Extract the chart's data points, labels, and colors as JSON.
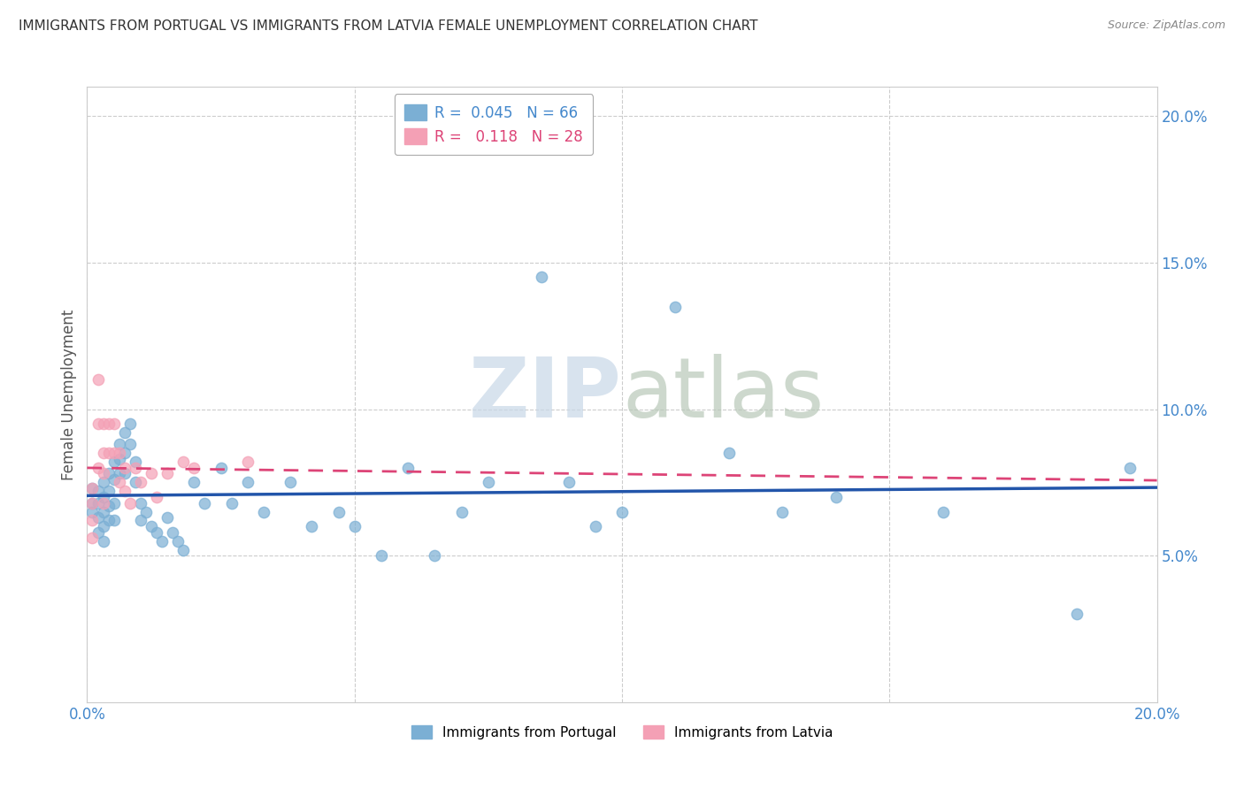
{
  "title": "IMMIGRANTS FROM PORTUGAL VS IMMIGRANTS FROM LATVIA FEMALE UNEMPLOYMENT CORRELATION CHART",
  "source": "Source: ZipAtlas.com",
  "ylabel": "Female Unemployment",
  "x_min": 0.0,
  "x_max": 0.2,
  "y_min": 0.0,
  "y_max": 0.21,
  "watermark": "ZIPatlas",
  "legend_R_portugal": "R =  0.045",
  "legend_N_portugal": "N = 66",
  "legend_R_latvia": "R =   0.118",
  "legend_N_latvia": "N = 28",
  "bottom_legend_portugal": "Immigrants from Portugal",
  "bottom_legend_latvia": "Immigrants from Latvia",
  "ytick_vals": [
    0.05,
    0.1,
    0.15,
    0.2
  ],
  "ytick_labels": [
    "5.0%",
    "10.0%",
    "15.0%",
    "20.0%"
  ],
  "xtick_vals": [
    0.0,
    0.05,
    0.1,
    0.15,
    0.2
  ],
  "xtick_labels": [
    "0.0%",
    "",
    "",
    "",
    "20.0%"
  ],
  "portugal_x": [
    0.001,
    0.001,
    0.001,
    0.002,
    0.002,
    0.002,
    0.002,
    0.003,
    0.003,
    0.003,
    0.003,
    0.003,
    0.004,
    0.004,
    0.004,
    0.004,
    0.005,
    0.005,
    0.005,
    0.005,
    0.006,
    0.006,
    0.006,
    0.007,
    0.007,
    0.007,
    0.008,
    0.008,
    0.009,
    0.009,
    0.01,
    0.01,
    0.011,
    0.012,
    0.013,
    0.014,
    0.015,
    0.016,
    0.017,
    0.018,
    0.02,
    0.022,
    0.025,
    0.027,
    0.03,
    0.033,
    0.038,
    0.042,
    0.047,
    0.05,
    0.055,
    0.06,
    0.065,
    0.07,
    0.075,
    0.085,
    0.09,
    0.095,
    0.1,
    0.11,
    0.12,
    0.13,
    0.14,
    0.16,
    0.185,
    0.195
  ],
  "portugal_y": [
    0.073,
    0.068,
    0.065,
    0.072,
    0.068,
    0.063,
    0.058,
    0.075,
    0.07,
    0.065,
    0.06,
    0.055,
    0.078,
    0.072,
    0.067,
    0.062,
    0.082,
    0.076,
    0.068,
    0.062,
    0.088,
    0.083,
    0.078,
    0.092,
    0.085,
    0.078,
    0.095,
    0.088,
    0.082,
    0.075,
    0.068,
    0.062,
    0.065,
    0.06,
    0.058,
    0.055,
    0.063,
    0.058,
    0.055,
    0.052,
    0.075,
    0.068,
    0.08,
    0.068,
    0.075,
    0.065,
    0.075,
    0.06,
    0.065,
    0.06,
    0.05,
    0.08,
    0.05,
    0.065,
    0.075,
    0.145,
    0.075,
    0.06,
    0.065,
    0.135,
    0.085,
    0.065,
    0.07,
    0.065,
    0.03,
    0.08
  ],
  "latvia_x": [
    0.001,
    0.001,
    0.001,
    0.001,
    0.002,
    0.002,
    0.002,
    0.003,
    0.003,
    0.003,
    0.003,
    0.004,
    0.004,
    0.005,
    0.005,
    0.006,
    0.006,
    0.007,
    0.007,
    0.008,
    0.009,
    0.01,
    0.012,
    0.013,
    0.015,
    0.018,
    0.02,
    0.03
  ],
  "latvia_y": [
    0.073,
    0.068,
    0.062,
    0.056,
    0.11,
    0.095,
    0.08,
    0.095,
    0.085,
    0.078,
    0.068,
    0.095,
    0.085,
    0.095,
    0.085,
    0.085,
    0.075,
    0.08,
    0.072,
    0.068,
    0.08,
    0.075,
    0.078,
    0.07,
    0.078,
    0.082,
    0.08,
    0.082
  ],
  "portugal_color": "#7bafd4",
  "latvia_color": "#f4a0b5",
  "portugal_line_color": "#2255aa",
  "latvia_line_color": "#dd4477",
  "background_color": "#ffffff",
  "grid_color": "#cccccc"
}
